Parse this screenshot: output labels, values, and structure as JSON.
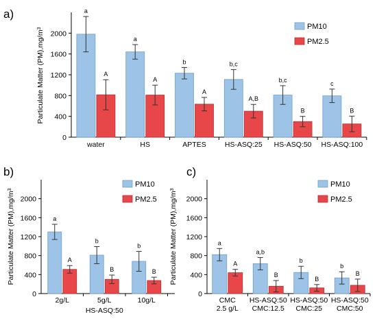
{
  "colors": {
    "PM10": "#9DC3E6",
    "PM10_edge": "#6F9FCC",
    "PM2.5": "#E8474A",
    "PM2.5_edge": "#B53033"
  },
  "chart_data": [
    {
      "panel": "a)",
      "type": "bar",
      "ylabel": "Particulate Matter (PM),mg/m",
      "ylabel_sup": "3",
      "ylim": [
        0,
        2400
      ],
      "yticks": [
        0,
        400,
        800,
        1200,
        1600,
        2000
      ],
      "legend": {
        "placement": "top-right",
        "entries": [
          "PM10",
          "PM2.5"
        ]
      },
      "categories": [
        [
          "water"
        ],
        [
          "HS"
        ],
        [
          "APTES"
        ],
        [
          "HS-ASQ:25"
        ],
        [
          "HS-ASQ:50"
        ],
        [
          "HS-ASQ:100"
        ]
      ],
      "group_label": "",
      "series": [
        {
          "name": "PM10",
          "values": [
            1980,
            1640,
            1230,
            1110,
            810,
            795
          ],
          "errors": [
            340,
            140,
            110,
            190,
            180,
            130
          ],
          "labels": [
            "a",
            "a",
            "b",
            "b,c",
            "b,c",
            "c"
          ]
        },
        {
          "name": "PM2.5",
          "values": [
            815,
            810,
            635,
            500,
            300,
            255
          ],
          "errors": [
            290,
            190,
            130,
            130,
            100,
            150
          ],
          "labels": [
            "A",
            "A",
            "A",
            "A,B",
            "B",
            "B"
          ]
        }
      ]
    },
    {
      "panel": "b)",
      "type": "bar",
      "ylabel": "Particulate Matter (PM),mg/m",
      "ylabel_sup": "3",
      "ylim": [
        0,
        2400
      ],
      "yticks": [
        0,
        400,
        800,
        1200,
        1600,
        2000
      ],
      "legend": {
        "placement": "top-right",
        "entries": [
          "PM10",
          "PM2.5"
        ]
      },
      "categories": [
        [
          "2g/L"
        ],
        [
          "5g/L"
        ],
        [
          "10g/L"
        ]
      ],
      "group_label": "HS-ASQ:50",
      "series": [
        {
          "name": "PM10",
          "values": [
            1300,
            810,
            680
          ],
          "errors": [
            160,
            180,
            210
          ],
          "labels": [
            "a",
            "b",
            "b"
          ]
        },
        {
          "name": "PM2.5",
          "values": [
            510,
            300,
            275
          ],
          "errors": [
            80,
            90,
            70
          ],
          "labels": [
            "A",
            "B",
            "B"
          ]
        }
      ]
    },
    {
      "panel": "c)",
      "type": "bar",
      "ylabel": "Particulate Matter (PM),mg/m",
      "ylabel_sup": "3",
      "ylim": [
        0,
        2400
      ],
      "yticks": [
        0,
        400,
        800,
        1200,
        1600,
        2000
      ],
      "legend": {
        "placement": "top-right",
        "entries": [
          "PM10",
          "PM2.5"
        ]
      },
      "categories": [
        [
          "CMC",
          "2.5 g/L"
        ],
        [
          "HS-ASQ:50",
          "CMC:12.5"
        ],
        [
          "HS-ASQ:50",
          "CMC:25"
        ],
        [
          "HS-ASQ:50",
          "CMC:50"
        ]
      ],
      "group_label": "",
      "series": [
        {
          "name": "PM10",
          "values": [
            820,
            630,
            445,
            330
          ],
          "errors": [
            130,
            130,
            130,
            130
          ],
          "labels": [
            "a",
            "a,b",
            "b",
            "b"
          ]
        },
        {
          "name": "PM2.5",
          "values": [
            440,
            155,
            120,
            175
          ],
          "errors": [
            70,
            120,
            70,
            130
          ],
          "labels": [
            "A",
            "B",
            "B",
            "B"
          ]
        }
      ]
    }
  ]
}
